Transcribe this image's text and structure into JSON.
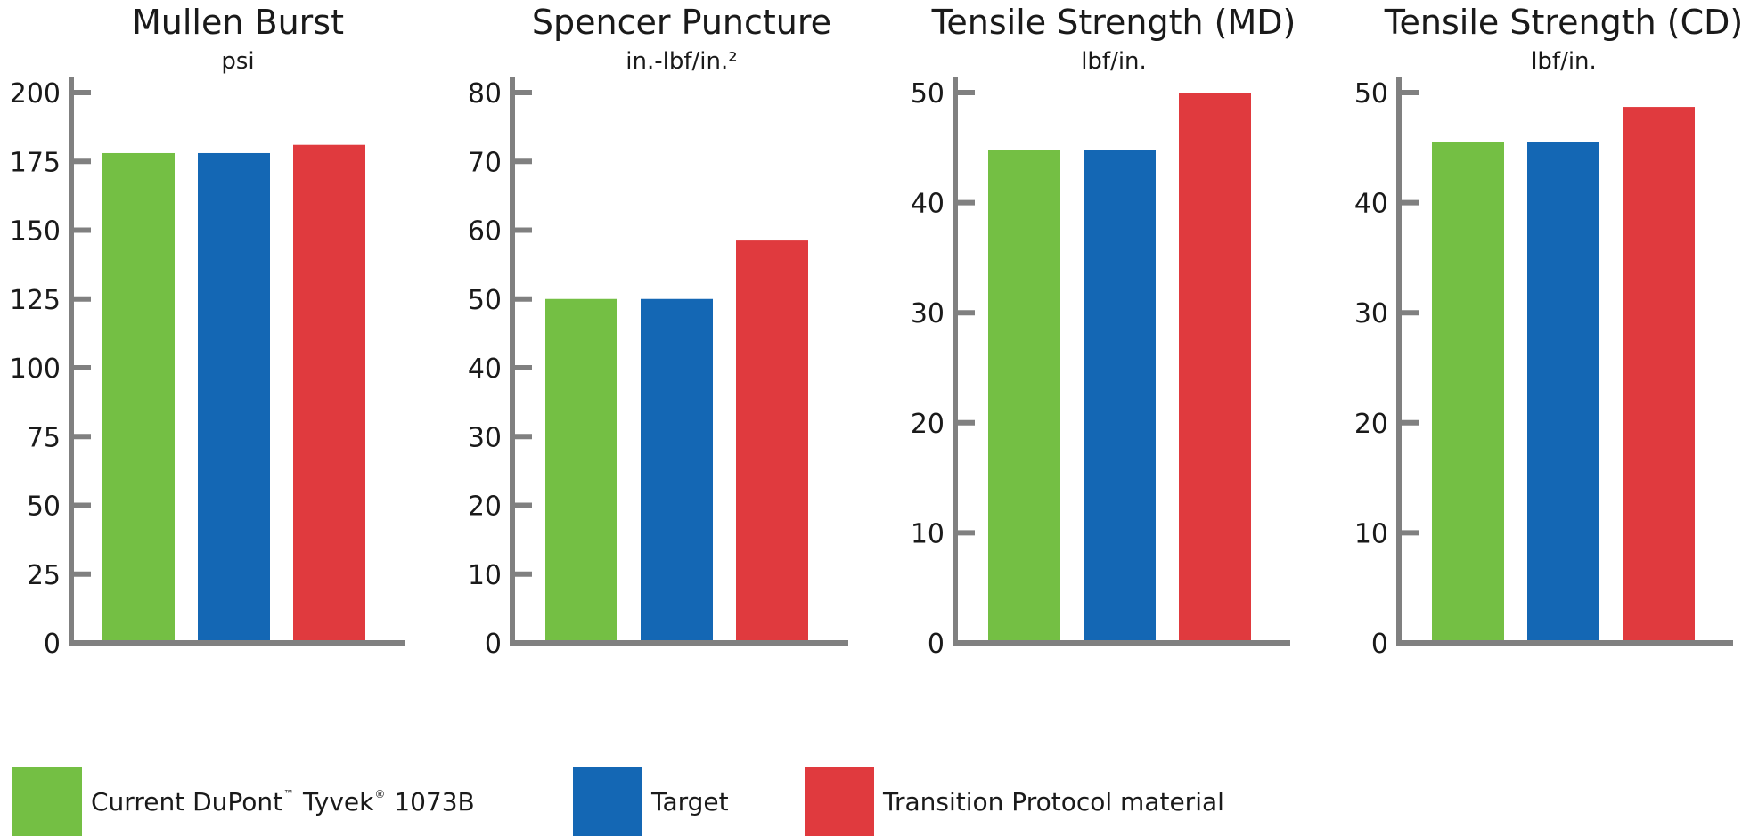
{
  "chart_data": [
    {
      "type": "bar",
      "title": "Mullen Burst",
      "unit": "psi",
      "categories": [
        "Current DuPont™ Tyvek® 1073B",
        "Target",
        "Transition Protocol material"
      ],
      "values": [
        178,
        178,
        181
      ],
      "ylim": [
        0,
        200
      ],
      "yticks": [
        0,
        25,
        50,
        75,
        100,
        125,
        150,
        175,
        200
      ],
      "grid": false
    },
    {
      "type": "bar",
      "title": "Spencer Puncture",
      "unit": "in.-lbf/in.²",
      "categories": [
        "Current DuPont™ Tyvek® 1073B",
        "Target",
        "Transition Protocol material"
      ],
      "values": [
        50,
        50,
        58.5
      ],
      "ylim": [
        0,
        80
      ],
      "yticks": [
        0,
        10,
        20,
        30,
        40,
        50,
        60,
        70,
        80
      ],
      "grid": false
    },
    {
      "type": "bar",
      "title": "Tensile Strength (MD)",
      "unit": "lbf/in.",
      "categories": [
        "Current DuPont™ Tyvek® 1073B",
        "Target",
        "Transition Protocol material"
      ],
      "values": [
        44.8,
        44.8,
        50
      ],
      "ylim": [
        0,
        50
      ],
      "yticks": [
        0,
        10,
        20,
        30,
        40,
        50
      ],
      "grid": false
    },
    {
      "type": "bar",
      "title": "Tensile Strength (CD)",
      "unit": "lbf/in.",
      "categories": [
        "Current DuPont™ Tyvek® 1073B",
        "Target",
        "Transition Protocol material"
      ],
      "values": [
        45.5,
        45.5,
        48.7
      ],
      "ylim": [
        0,
        50
      ],
      "yticks": [
        0,
        10,
        20,
        30,
        40,
        50
      ],
      "grid": false
    }
  ],
  "legend": {
    "position": "bottom",
    "items": [
      {
        "pre": "Current DuPont",
        "tm": "™",
        "mid": " Tyvek",
        "reg": "®",
        "post": " 1073B",
        "color": "#74bf44"
      },
      {
        "pre": "Target",
        "tm": "",
        "mid": "",
        "reg": "",
        "post": "",
        "color": "#1467b4"
      },
      {
        "pre": "Transition Protocol material",
        "tm": "",
        "mid": "",
        "reg": "",
        "post": "",
        "color": "#e03a3e"
      }
    ]
  },
  "colors": {
    "series": [
      "#74bf44",
      "#1467b4",
      "#e03a3e"
    ],
    "axis": "#808080",
    "text": "#1a1a1a"
  }
}
